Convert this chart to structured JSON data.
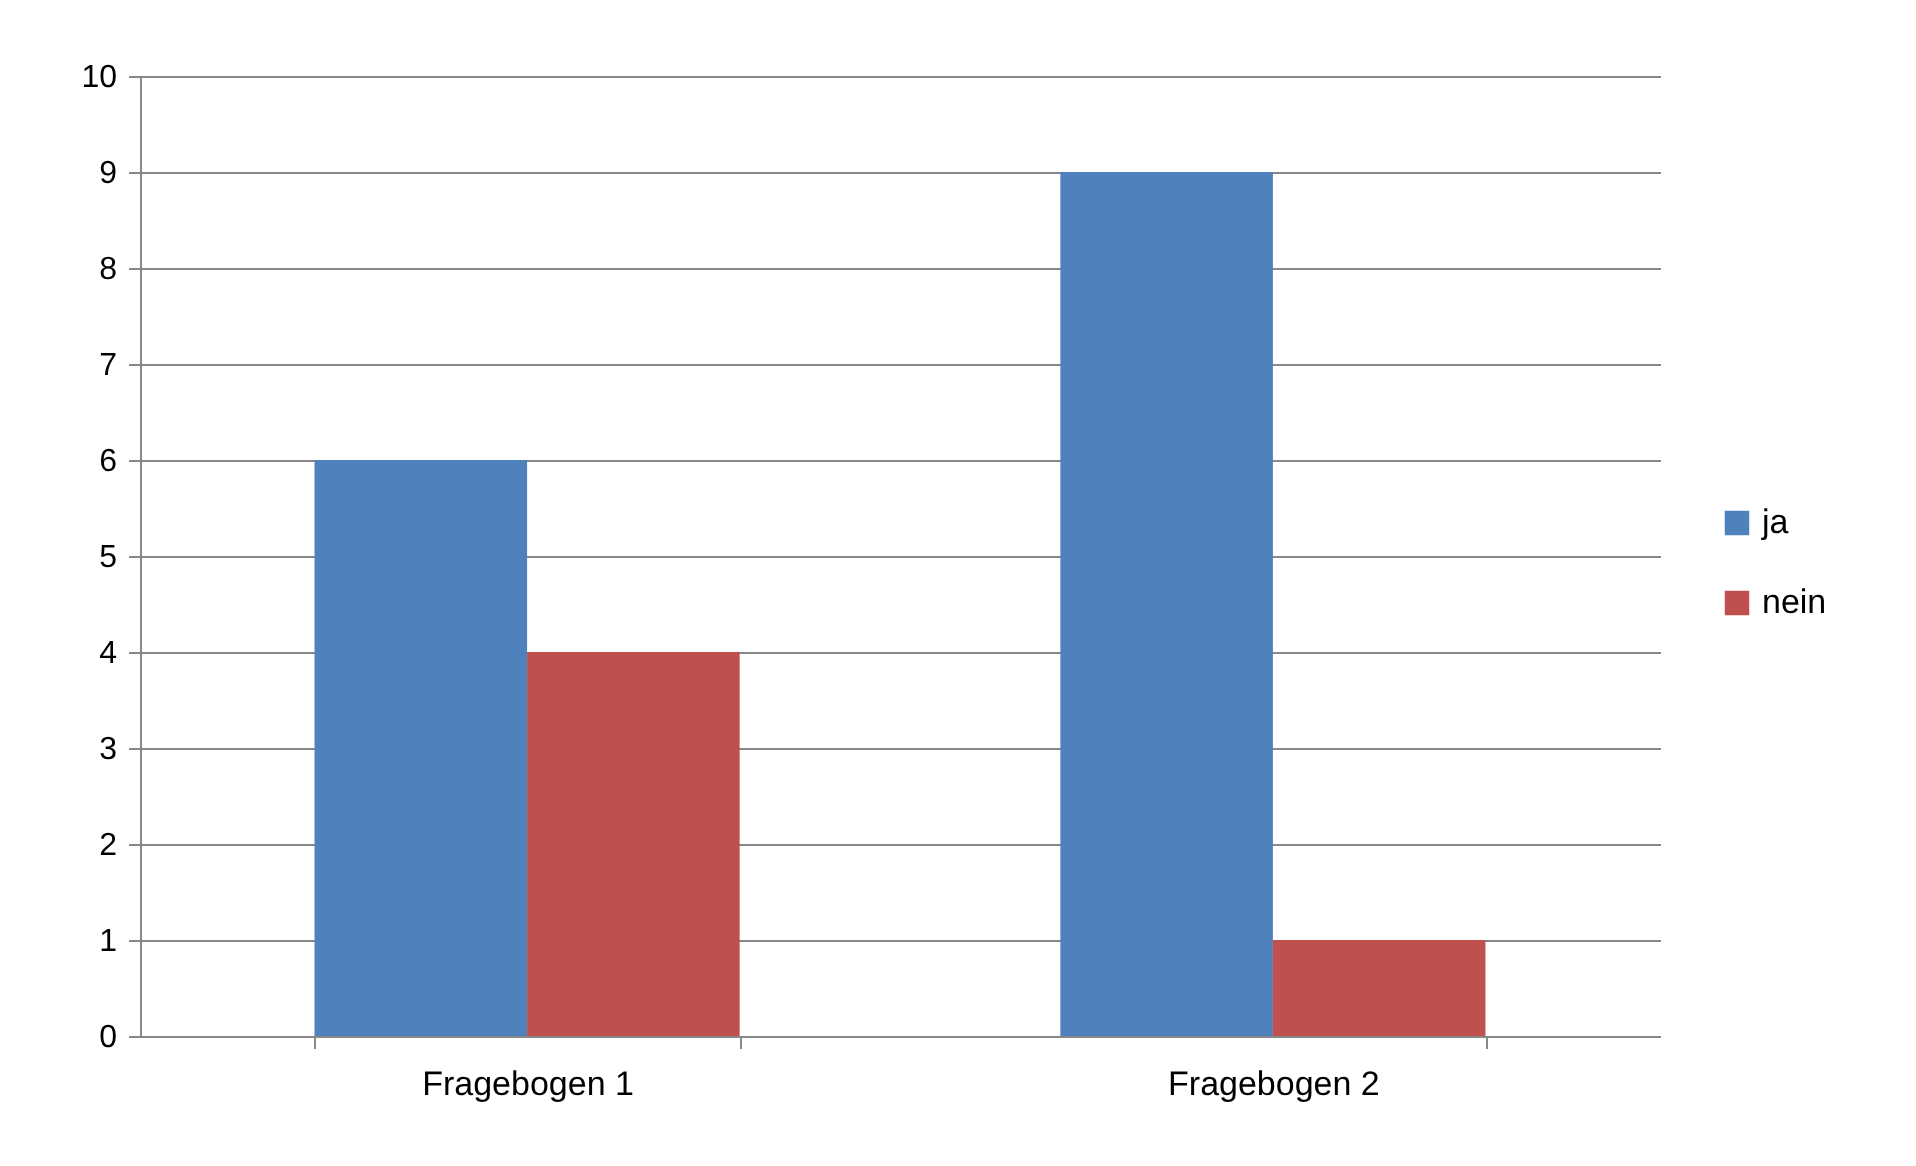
{
  "chart_data": {
    "type": "bar",
    "categories": [
      "Fragebogen 1",
      "Fragebogen 2"
    ],
    "series": [
      {
        "name": "ja",
        "color": "#4f81bd",
        "values": [
          6,
          9
        ]
      },
      {
        "name": "nein",
        "color": "#c0504d",
        "values": [
          4,
          1
        ]
      }
    ],
    "ylim": [
      0,
      10
    ],
    "yticks": [
      0,
      1,
      2,
      3,
      4,
      5,
      6,
      7,
      8,
      9,
      10
    ],
    "grid": "y",
    "legend": "right"
  }
}
